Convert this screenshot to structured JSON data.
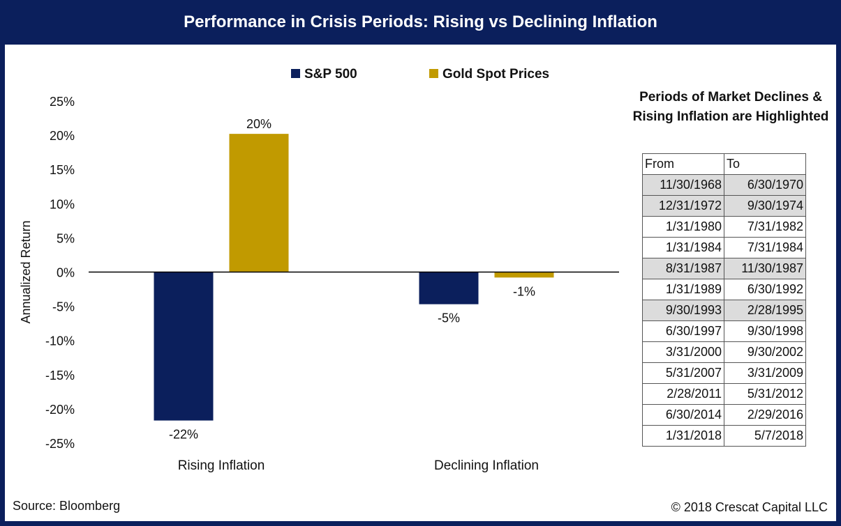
{
  "title": "Performance in Crisis Periods: Rising vs Declining Inflation",
  "source": "Source: Bloomberg",
  "copyright": "© 2018 Crescat Capital LLC",
  "chart_data": {
    "type": "bar",
    "title": "",
    "xlabel": "",
    "ylabel": "Annualized Return",
    "categories": [
      "Rising Inflation",
      "Declining Inflation"
    ],
    "series": [
      {
        "name": "S&P 500",
        "color": "#0b1f5c",
        "values": [
          -21.7,
          -4.7
        ],
        "labels": [
          "-22%",
          "-5%"
        ]
      },
      {
        "name": "Gold Spot Prices",
        "color": "#c19a00",
        "values": [
          20.2,
          -0.8
        ],
        "labels": [
          "20%",
          "-1%"
        ]
      }
    ],
    "ylim": [
      -25,
      25
    ],
    "yticks": [
      25,
      20,
      15,
      10,
      5,
      0,
      -5,
      -10,
      -15,
      -20,
      -25
    ],
    "ytick_labels": [
      "25%",
      "20%",
      "15%",
      "10%",
      "5%",
      "0%",
      "-5%",
      "-10%",
      "-15%",
      "-20%",
      "-25%"
    ],
    "legend_position": "top",
    "grid": false
  },
  "periods_table": {
    "title": "Periods of Market Declines & Rising Inflation are Highlighted",
    "headers": [
      "From",
      "To"
    ],
    "rows": [
      {
        "from": "11/30/1968",
        "to": "6/30/1970",
        "highlighted": true
      },
      {
        "from": "12/31/1972",
        "to": "9/30/1974",
        "highlighted": true
      },
      {
        "from": "1/31/1980",
        "to": "7/31/1982",
        "highlighted": false
      },
      {
        "from": "1/31/1984",
        "to": "7/31/1984",
        "highlighted": false
      },
      {
        "from": "8/31/1987",
        "to": "11/30/1987",
        "highlighted": true
      },
      {
        "from": "1/31/1989",
        "to": "6/30/1992",
        "highlighted": false
      },
      {
        "from": "9/30/1993",
        "to": "2/28/1995",
        "highlighted": true
      },
      {
        "from": "6/30/1997",
        "to": "9/30/1998",
        "highlighted": false
      },
      {
        "from": "3/31/2000",
        "to": "9/30/2002",
        "highlighted": false
      },
      {
        "from": "5/31/2007",
        "to": "3/31/2009",
        "highlighted": false
      },
      {
        "from": "2/28/2011",
        "to": "5/31/2012",
        "highlighted": false
      },
      {
        "from": "6/30/2014",
        "to": "2/29/2016",
        "highlighted": false
      },
      {
        "from": "1/31/2018",
        "to": "5/7/2018",
        "highlighted": false
      }
    ]
  }
}
